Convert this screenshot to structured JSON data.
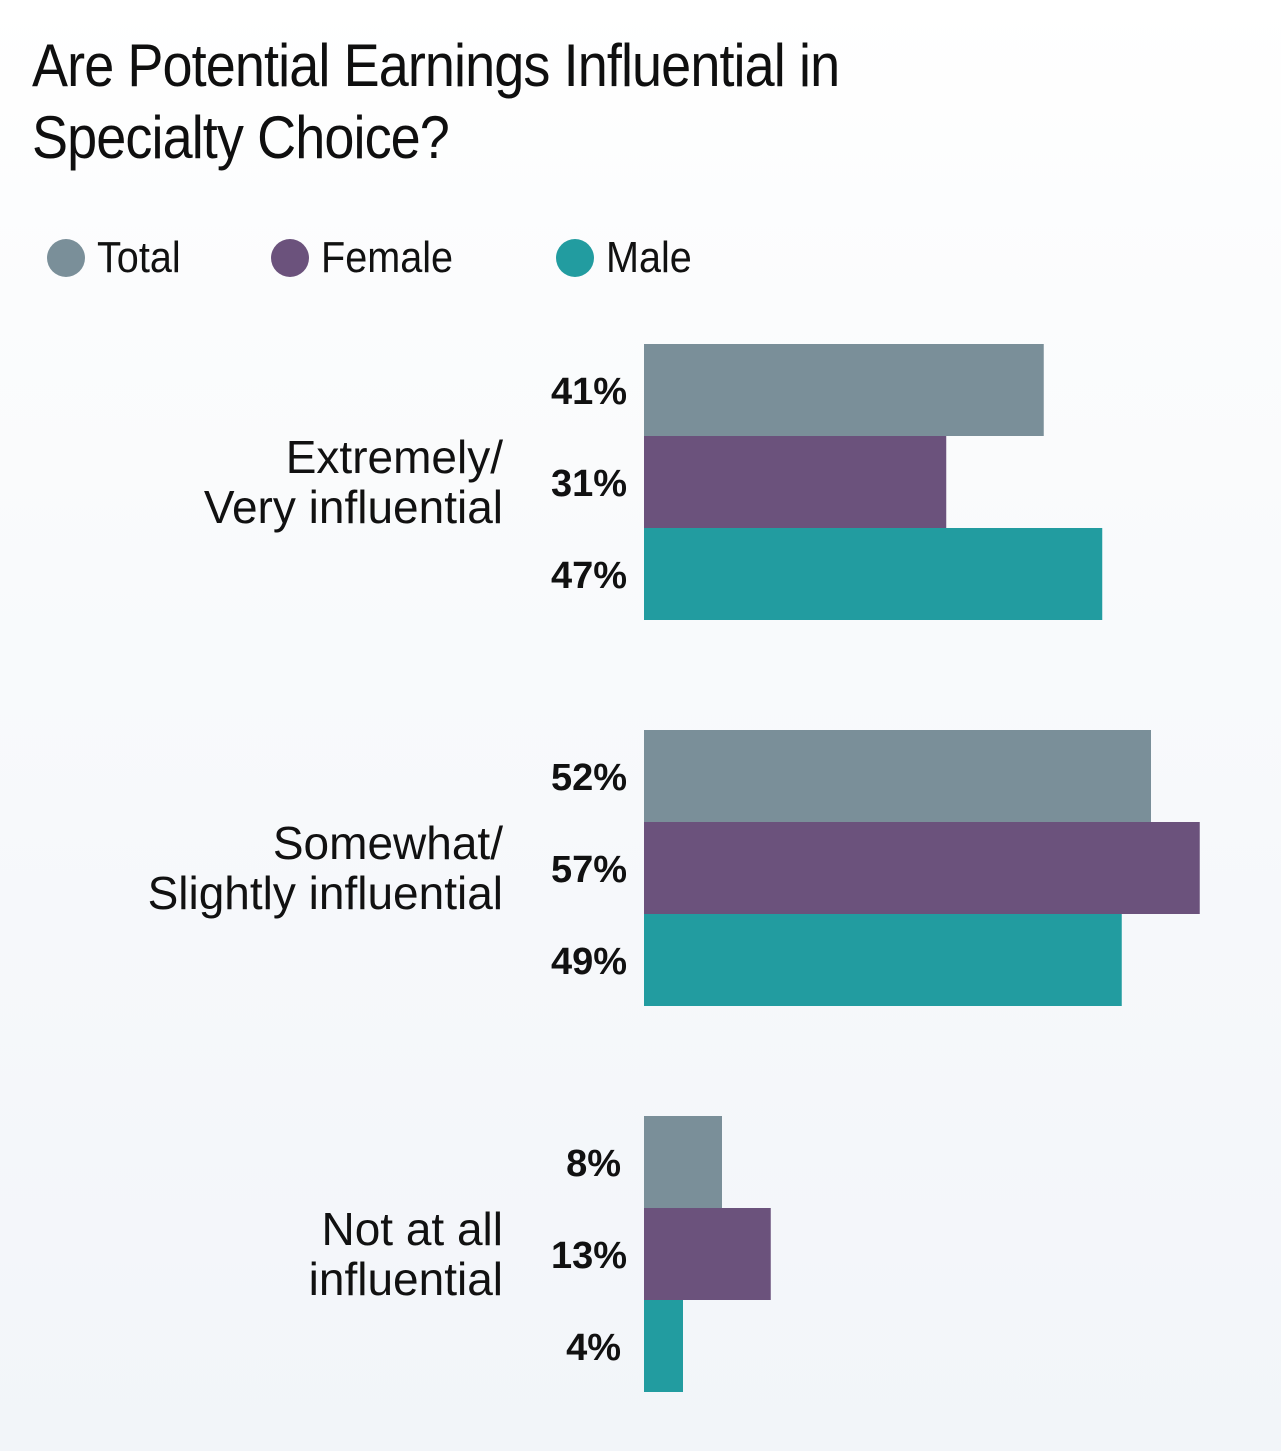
{
  "chart_data": {
    "type": "bar",
    "orientation": "horizontal",
    "title": "Are Potential Earnings Influential in Specialty Choice?",
    "title_lines": [
      "Are Potential Earnings Influential in",
      "Specialty Choice?"
    ],
    "categories": [
      "Extremely/ Very influential",
      "Somewhat/ Slightly influential",
      "Not at all influential"
    ],
    "category_lines": [
      [
        "Extremely/",
        "Very influential"
      ],
      [
        "Somewhat/",
        "Slightly influential"
      ],
      [
        "Not at all",
        "influential"
      ]
    ],
    "series": [
      {
        "name": "Total",
        "color": "#7a8f99",
        "values": [
          41,
          52,
          8
        ]
      },
      {
        "name": "Female",
        "color": "#6b527c",
        "values": [
          31,
          57,
          13
        ]
      },
      {
        "name": "Male",
        "color": "#229ca0",
        "values": [
          47,
          49,
          4
        ]
      }
    ],
    "value_suffix": "%",
    "xlim": [
      0,
      100
    ],
    "xlabel": "",
    "ylabel": "",
    "grid": false,
    "legend_position": "top-left"
  }
}
